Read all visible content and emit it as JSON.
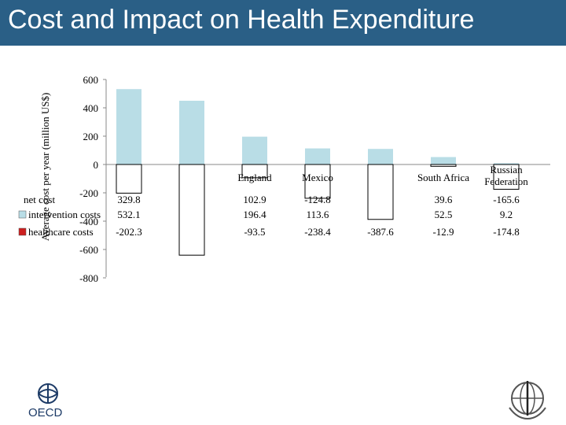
{
  "header": {
    "title": "Cost and Impact on Health Expenditure"
  },
  "logos": {
    "oecd": "OECD",
    "who": "WHO emblem"
  },
  "colors": {
    "header": "#2a5f86",
    "intervention": "#b9dde6",
    "healthcare": "#ffffff",
    "net": "#ffffff"
  },
  "chart_data": {
    "type": "bar",
    "ylabel": "Average cost per year (million US$)",
    "ylim": [
      -800,
      600
    ],
    "yticks": [
      600,
      400,
      200,
      0,
      -200,
      -400,
      -600,
      -800
    ],
    "categories": [
      "",
      "",
      "England",
      "Mexico",
      "",
      "South Africa",
      "Russian Federation"
    ],
    "category_display": [
      "",
      "",
      "England",
      "Mexico",
      "",
      "South Africa",
      "Russian\nFederation"
    ],
    "series": [
      {
        "name": "net cost",
        "values": [
          329.8,
          null,
          102.9,
          -124.8,
          null,
          39.6,
          -165.6
        ],
        "labels": [
          "329.8",
          "",
          "102.9",
          "-124.8",
          "",
          "39.6",
          "-165.6"
        ]
      },
      {
        "name": "intervention costs",
        "values": [
          532.1,
          450,
          196.4,
          113.6,
          110,
          52.5,
          9.2
        ],
        "labels": [
          "532.1",
          "",
          "196.4",
          "113.6",
          "",
          "52.5",
          "9.2"
        ]
      },
      {
        "name": "healthcare costs",
        "values": [
          -202.3,
          -640,
          -93.5,
          -238.4,
          -387.6,
          -12.9,
          -174.8
        ],
        "labels": [
          "-202.3",
          "",
          "-93.5",
          "-238.4",
          "-387.6",
          "-12.9",
          "-174.8"
        ]
      }
    ],
    "legend_position": "left table",
    "grid": false
  }
}
